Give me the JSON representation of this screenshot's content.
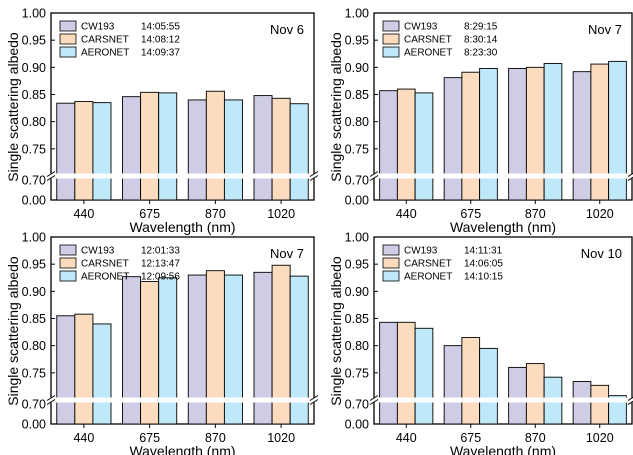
{
  "colors": {
    "CW193": "#cecde5",
    "CARSNET": "#fcdcbf",
    "AERONET": "#bfe8f8",
    "axis": "#000000",
    "break_band": "#ffffff"
  },
  "chart_data": [
    {
      "type": "bar",
      "date": "Nov 6",
      "categories": [
        "440",
        "675",
        "870",
        "1020"
      ],
      "xlabel": "Wavelength (nm)",
      "ylabel": "Single scattering albedo",
      "yticks": [
        "0.00",
        "0.70",
        "0.75",
        "0.80",
        "0.85",
        "0.90",
        "0.95",
        "1.00"
      ],
      "axis_break": [
        0.0,
        0.7
      ],
      "grid": false,
      "legend_position": "top-left",
      "series": [
        {
          "name": "CW193",
          "time": "14:05:55",
          "values": [
            0.834,
            0.846,
            0.84,
            0.848
          ]
        },
        {
          "name": "CARSNET",
          "time": "14:08:12",
          "values": [
            0.837,
            0.854,
            0.856,
            0.843
          ]
        },
        {
          "name": "AERONET",
          "time": "14:09:37",
          "values": [
            0.835,
            0.853,
            0.84,
            0.833
          ]
        }
      ]
    },
    {
      "type": "bar",
      "date": "Nov 7",
      "categories": [
        "440",
        "675",
        "870",
        "1020"
      ],
      "xlabel": "Wavelength (nm)",
      "ylabel": "",
      "yticks": [
        "0.00",
        "0.70",
        "0.75",
        "0.80",
        "0.85",
        "0.90",
        "0.95",
        "1.00"
      ],
      "axis_break": [
        0.0,
        0.7
      ],
      "grid": false,
      "legend_position": "top-left",
      "series": [
        {
          "name": "CW193",
          "time": "8:29:15",
          "values": [
            0.857,
            0.881,
            0.898,
            0.892
          ]
        },
        {
          "name": "CARSNET",
          "time": "8:30:14",
          "values": [
            0.86,
            0.891,
            0.9,
            0.906
          ]
        },
        {
          "name": "AERONET",
          "time": "8:23:30",
          "values": [
            0.853,
            0.898,
            0.907,
            0.911
          ]
        }
      ]
    },
    {
      "type": "bar",
      "date": "Nov 7",
      "categories": [
        "440",
        "675",
        "870",
        "1020"
      ],
      "xlabel": "Wavelength (nm)",
      "ylabel": "Single scattering albedo",
      "yticks": [
        "0.00",
        "0.70",
        "0.75",
        "0.80",
        "0.85",
        "0.90",
        "0.95",
        "1.00"
      ],
      "axis_break": [
        0.0,
        0.7
      ],
      "grid": false,
      "legend_position": "top-left",
      "series": [
        {
          "name": "CW193",
          "time": "12:01:33",
          "values": [
            0.855,
            0.927,
            0.93,
            0.935
          ]
        },
        {
          "name": "CARSNET",
          "time": "12:13:47",
          "values": [
            0.858,
            0.918,
            0.938,
            0.948
          ]
        },
        {
          "name": "AERONET",
          "time": "12:09:56",
          "values": [
            0.84,
            0.925,
            0.93,
            0.928
          ]
        }
      ]
    },
    {
      "type": "bar",
      "date": "Nov 10",
      "categories": [
        "440",
        "675",
        "870",
        "1020"
      ],
      "xlabel": "Wavelength (nm)",
      "ylabel": "",
      "yticks": [
        "0.00",
        "0.70",
        "0.75",
        "0.80",
        "0.85",
        "0.90",
        "0.95",
        "1.00"
      ],
      "axis_break": [
        0.0,
        0.7
      ],
      "grid": false,
      "legend_position": "top-left",
      "series": [
        {
          "name": "CW193",
          "time": "14:11:31",
          "values": [
            0.843,
            0.8,
            0.76,
            0.734
          ]
        },
        {
          "name": "CARSNET",
          "time": "14:06:05",
          "values": [
            0.843,
            0.815,
            0.767,
            0.727
          ]
        },
        {
          "name": "AERONET",
          "time": "14:10:15",
          "values": [
            0.832,
            0.795,
            0.742,
            0.708
          ]
        }
      ]
    }
  ]
}
